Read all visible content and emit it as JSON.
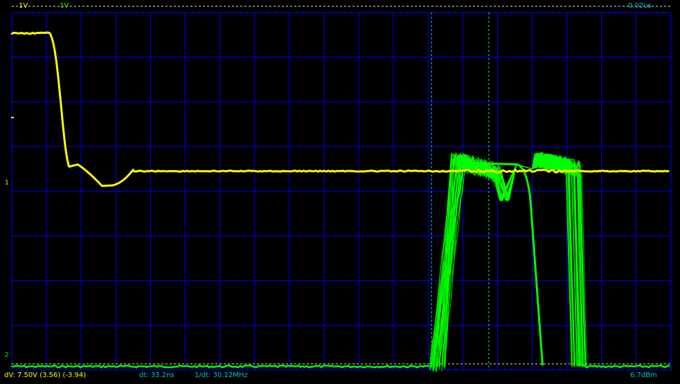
{
  "header": {
    "ch1_scale": "1V",
    "ch2_scale": "1V",
    "timebase": "0.02us"
  },
  "footer": {
    "dv": "dV: 7.50V  (3.56) (-3.94)",
    "dt": "dt: 33.2ns",
    "inv_dt": "1/dt: 30.12MHz",
    "power": "6.7dBm"
  },
  "markers": {
    "ch1_ground": "1",
    "ch2_ground": "2"
  },
  "colors": {
    "ch1": "#ffff00",
    "ch2": "#00ff00",
    "grid": "#0000ff",
    "cursor": "#00e0e0",
    "text_cyan": "#00c8c8"
  },
  "scope": {
    "h_divisions": 19,
    "v_divisions": 8,
    "ch1_trace": {
      "initial_level_div": 0.0,
      "falls_to_div": 3.55,
      "fall_start_div": 1.1,
      "fall_end_div": 2.8
    },
    "ch2_burst": {
      "baseline_div": 7.92,
      "high_div": 3.3,
      "burst_start_div": 12.05,
      "burst_end_div": 16.45
    },
    "time_cursors_div": [
      12.1,
      13.75
    ],
    "level_cursors_div": [
      -0.2,
      7.8
    ]
  }
}
